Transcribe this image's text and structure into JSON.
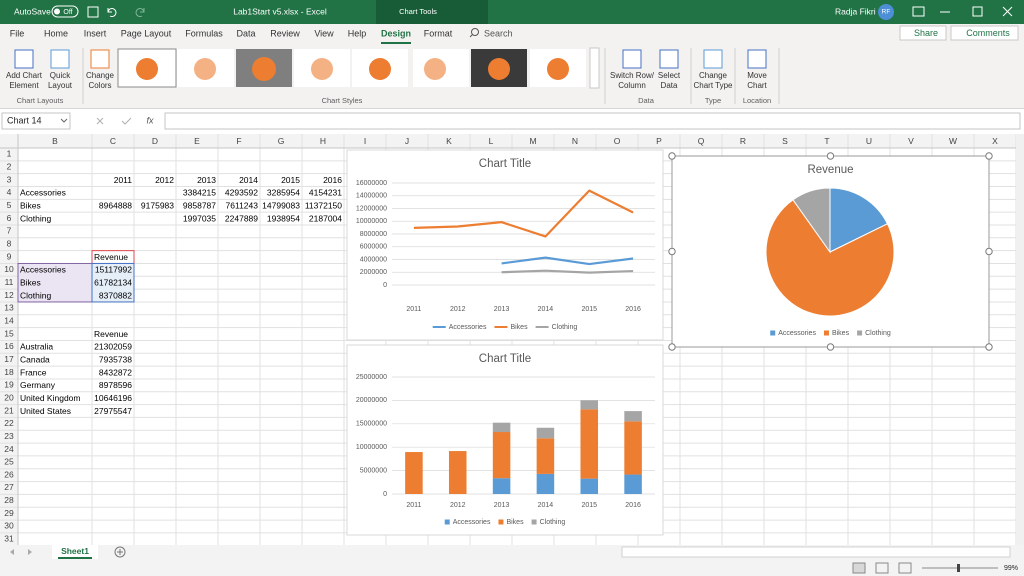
{
  "titlebar": {
    "autosave": "AutoSave",
    "autosave_state": "Off",
    "filename": "Lab1Start v5.xlsx  -  Excel",
    "context": "Chart Tools",
    "user": "Radja Fikri",
    "initials": "RF"
  },
  "ribbon": {
    "tabs": [
      "File",
      "Home",
      "Insert",
      "Page Layout",
      "Formulas",
      "Data",
      "Review",
      "View",
      "Help",
      "Design",
      "Format"
    ],
    "search": "Search",
    "share": "Share",
    "comments": "Comments",
    "groups": [
      {
        "label": "Chart Layouts",
        "buttons": [
          [
            "Add Chart",
            "Element"
          ],
          [
            "Quick",
            "Layout"
          ]
        ]
      },
      {
        "label": "Chart Styles",
        "buttons": [
          [
            "Change",
            "Colors"
          ]
        ]
      },
      {
        "label": "Data",
        "buttons": [
          [
            "Switch Row/",
            "Column"
          ],
          [
            "Select",
            "Data"
          ]
        ]
      },
      {
        "label": "Type",
        "buttons": [
          [
            "Change",
            "Chart Type"
          ]
        ]
      },
      {
        "label": "Location",
        "buttons": [
          [
            "Move",
            "Chart"
          ]
        ]
      }
    ]
  },
  "formula_bar": {
    "name_box": "Chart 14",
    "function_label": "fx"
  },
  "sheet": {
    "columns": [
      "B",
      "C",
      "D",
      "E",
      "F",
      "G",
      "H",
      "I",
      "J",
      "K",
      "L",
      "M",
      "N",
      "O",
      "P",
      "Q",
      "R",
      "S",
      "T",
      "U",
      "V",
      "W",
      "X"
    ],
    "row_numbers": [
      1,
      2,
      3,
      4,
      5,
      6,
      7,
      8,
      9,
      10,
      11,
      12,
      13,
      14,
      15,
      16,
      17,
      18,
      19,
      20,
      21,
      22,
      23,
      24,
      25,
      26,
      27,
      28,
      29,
      30,
      31
    ],
    "rows": [
      [],
      [],
      [
        null,
        2011,
        2012,
        2013,
        2014,
        2015,
        2016
      ],
      [
        "Accessories",
        null,
        null,
        3384215,
        4293592,
        3285954,
        4154231
      ],
      [
        "Bikes",
        8964888,
        9175983,
        9858787,
        7611243,
        14799083,
        11372150
      ],
      [
        "Clothing",
        null,
        null,
        1997035,
        2247889,
        1938954,
        2187004
      ],
      [],
      [],
      [
        null,
        "Revenue"
      ],
      [
        "Accessories",
        15117992
      ],
      [
        "Bikes",
        61782134
      ],
      [
        "Clothing",
        8370882
      ],
      [],
      [],
      [
        null,
        "Revenue"
      ],
      [
        "Australia",
        21302059
      ],
      [
        "Canada",
        7935738
      ],
      [
        "France",
        8432872
      ],
      [
        "Germany",
        8978596
      ],
      [
        "United Kingdom",
        10646196
      ],
      [
        "United States",
        27975547
      ],
      [],
      [],
      [],
      [],
      [],
      [],
      [],
      [],
      [],
      []
    ]
  },
  "charts": [
    {
      "type": "line",
      "title": "Chart Title",
      "categories": [
        "2011",
        "2012",
        "2013",
        "2014",
        "2015",
        "2016"
      ],
      "series": [
        {
          "name": "Accessories",
          "color": "#5b9bd5",
          "values": [
            null,
            null,
            3384215,
            4293592,
            3285954,
            4154231
          ]
        },
        {
          "name": "Bikes",
          "color": "#ed7d31",
          "values": [
            8964888,
            9175983,
            9858787,
            7611243,
            14799083,
            11372150
          ]
        },
        {
          "name": "Clothing",
          "color": "#a5a5a5",
          "values": [
            null,
            null,
            1997035,
            2247889,
            1938954,
            2187004
          ]
        }
      ],
      "ylim": [
        0,
        16000000
      ],
      "yticks": [
        0,
        2000000,
        4000000,
        6000000,
        8000000,
        10000000,
        12000000,
        14000000,
        16000000
      ],
      "grid": true,
      "legend": "bottom"
    },
    {
      "type": "pie",
      "title": "Revenue",
      "categories": [
        "Accessories",
        "Bikes",
        "Clothing"
      ],
      "values": [
        15117992,
        61782134,
        8370882
      ],
      "colors": [
        "#5b9bd5",
        "#ed7d31",
        "#a5a5a5"
      ],
      "legend": "bottom"
    },
    {
      "type": "stacked_bar",
      "title": "Chart Title",
      "categories": [
        "2011",
        "2012",
        "2013",
        "2014",
        "2015",
        "2016"
      ],
      "series": [
        {
          "name": "Accessories",
          "color": "#5b9bd5",
          "values": [
            null,
            null,
            3384215,
            4293592,
            3285954,
            4154231
          ]
        },
        {
          "name": "Bikes",
          "color": "#ed7d31",
          "values": [
            8964888,
            9175983,
            9858787,
            7611243,
            14799083,
            11372150
          ]
        },
        {
          "name": "Clothing",
          "color": "#a5a5a5",
          "values": [
            null,
            null,
            1997035,
            2247889,
            1938954,
            2187004
          ]
        }
      ],
      "ylim": [
        0,
        25000000
      ],
      "yticks": [
        0,
        5000000,
        10000000,
        15000000,
        20000000,
        25000000
      ],
      "grid": true,
      "legend": "bottom"
    }
  ],
  "sheet_tab": "Sheet1",
  "status": {
    "zoom": "99%"
  }
}
